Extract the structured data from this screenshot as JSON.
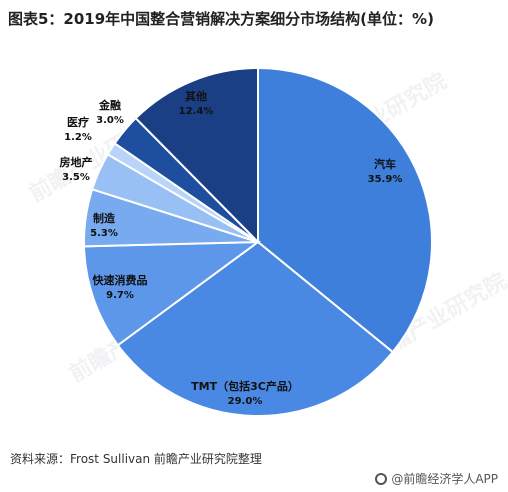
{
  "title": "图表5：2019年中国整合营销解决方案细分市场结构(单位：%)",
  "source": "资料来源：Frost Sullivan 前瞻产业研究院整理",
  "watermark": "前瞻产业研究院",
  "app_credit": "@前瞻经济学人APP",
  "chart_data": {
    "type": "pie",
    "title": "图表5：2019年中国整合营销解决方案细分市场结构(单位：%)",
    "unit": "%",
    "slices": [
      {
        "label": "汽车",
        "value": 35.9,
        "display": "35.9%",
        "color": "#3E7FDC"
      },
      {
        "label": "TMT（包括3C产品）",
        "value": 29.0,
        "display": "29.0%",
        "color": "#4A89E3"
      },
      {
        "label": "快速消费品",
        "value": 9.7,
        "display": "9.7%",
        "color": "#5C97E9"
      },
      {
        "label": "制造",
        "value": 5.3,
        "display": "5.3%",
        "color": "#78AAF0"
      },
      {
        "label": "房地产",
        "value": 3.5,
        "display": "3.5%",
        "color": "#98C0F4"
      },
      {
        "label": "医疗",
        "value": 1.2,
        "display": "1.2%",
        "color": "#B8D4F8"
      },
      {
        "label": "金融",
        "value": 3.0,
        "display": "3.0%",
        "color": "#1E4E9E"
      },
      {
        "label": "其他",
        "value": 12.4,
        "display": "12.4%",
        "color": "#1B3F84"
      }
    ]
  }
}
